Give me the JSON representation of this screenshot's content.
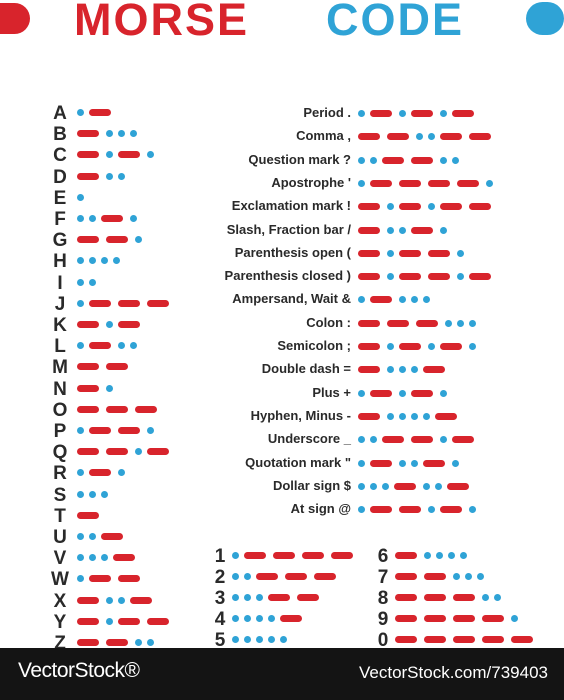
{
  "header": {
    "title_word_1": "MORSE",
    "title_word_2": "CODE",
    "colors": {
      "dash_red": "#d8242c",
      "dot_blue": "#2fa3d6",
      "text": "#2a2a2a",
      "footer_bg": "#141414"
    }
  },
  "letters": [
    {
      "label": "A",
      "code": ".-"
    },
    {
      "label": "B",
      "code": "-..."
    },
    {
      "label": "C",
      "code": "-.-."
    },
    {
      "label": "D",
      "code": "-.."
    },
    {
      "label": "E",
      "code": "."
    },
    {
      "label": "F",
      "code": "..-."
    },
    {
      "label": "G",
      "code": "--."
    },
    {
      "label": "H",
      "code": "...."
    },
    {
      "label": "I",
      "code": ".."
    },
    {
      "label": "J",
      "code": ".---"
    },
    {
      "label": "K",
      "code": "-.-"
    },
    {
      "label": "L",
      "code": ".-.."
    },
    {
      "label": "M",
      "code": "--"
    },
    {
      "label": "N",
      "code": "-."
    },
    {
      "label": "O",
      "code": "---"
    },
    {
      "label": "P",
      "code": ".--."
    },
    {
      "label": "Q",
      "code": "--.-"
    },
    {
      "label": "R",
      "code": ".-."
    },
    {
      "label": "S",
      "code": "..."
    },
    {
      "label": "T",
      "code": "-"
    },
    {
      "label": "U",
      "code": "..-"
    },
    {
      "label": "V",
      "code": "...-"
    },
    {
      "label": "W",
      "code": ".--"
    },
    {
      "label": "X",
      "code": "-..-"
    },
    {
      "label": "Y",
      "code": "-.--"
    },
    {
      "label": "Z",
      "code": "--.."
    }
  ],
  "punctuation": [
    {
      "label": "Period .",
      "code": ".-.-.-"
    },
    {
      "label": "Comma ,",
      "code": "--..--"
    },
    {
      "label": "Question mark ?",
      "code": "..--.."
    },
    {
      "label": "Apostrophe '",
      "code": ".----."
    },
    {
      "label": "Exclamation mark !",
      "code": "-.-.--"
    },
    {
      "label": "Slash, Fraction bar /",
      "code": "-..-."
    },
    {
      "label": "Parenthesis open (",
      "code": "-.--."
    },
    {
      "label": "Parenthesis closed )",
      "code": "-.--.-"
    },
    {
      "label": "Ampersand, Wait &",
      "code": ".-..."
    },
    {
      "label": "Colon :",
      "code": "---..."
    },
    {
      "label": "Semicolon ;",
      "code": "-.-.-."
    },
    {
      "label": "Double dash =",
      "code": "-...-"
    },
    {
      "label": "Plus +",
      "code": ".-.-."
    },
    {
      "label": "Hyphen, Minus -",
      "code": "-....-"
    },
    {
      "label": "Underscore _",
      "code": "..--.-"
    },
    {
      "label": "Quotation mark \"",
      "code": ".-..-."
    },
    {
      "label": "Dollar sign $",
      "code": "...-..-"
    },
    {
      "label": "At sign @",
      "code": ".--.-."
    }
  ],
  "numbers_left": [
    {
      "label": "1",
      "code": ".----"
    },
    {
      "label": "2",
      "code": "..---"
    },
    {
      "label": "3",
      "code": "...--"
    },
    {
      "label": "4",
      "code": "....-"
    },
    {
      "label": "5",
      "code": "....."
    }
  ],
  "numbers_right": [
    {
      "label": "6",
      "code": "-...."
    },
    {
      "label": "7",
      "code": "--..."
    },
    {
      "label": "8",
      "code": "---.."
    },
    {
      "label": "9",
      "code": "----."
    },
    {
      "label": "0",
      "code": "-----"
    }
  ],
  "footer": {
    "brand": "VectorStock®",
    "url": "VectorStock.com/739403"
  }
}
